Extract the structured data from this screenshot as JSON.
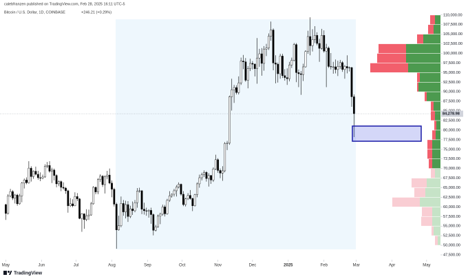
{
  "header": {
    "publisher": "calebfranzen published on TradingView.com, Feb 28, 2025 16:11 UTC-5",
    "symbol": "Bitcoin / U.S. Dollar, 1D, COINBASE",
    "change": "+246.21 (+0.29%)"
  },
  "footer": {
    "brand": "TradingView"
  },
  "chart_data": {
    "type": "candlestick",
    "up_color": "#ffffff",
    "down_color": "#000000",
    "wick_color": "#000000",
    "xlim": [
      -5,
      377
    ],
    "xticks": [
      {
        "value": 0,
        "label": "May"
      },
      {
        "value": 31,
        "label": "Jun"
      },
      {
        "value": 61,
        "label": "Jul"
      },
      {
        "value": 92,
        "label": "Aug"
      },
      {
        "value": 123,
        "label": "Sep"
      },
      {
        "value": 153,
        "label": "Oct"
      },
      {
        "value": 184,
        "label": "Nov"
      },
      {
        "value": 214,
        "label": "Dec"
      },
      {
        "value": 245,
        "label": "2025"
      },
      {
        "value": 276,
        "label": "Feb"
      },
      {
        "value": 304,
        "label": "Mar"
      },
      {
        "value": 335,
        "label": "Apr"
      },
      {
        "value": 365,
        "label": "May"
      }
    ],
    "ylim": [
      46600,
      111400
    ],
    "yticks": [
      {
        "value": 47500,
        "label": "47,500.00"
      },
      {
        "value": 50000,
        "label": "50,000.00"
      },
      {
        "value": 52500,
        "label": "52,500.00"
      },
      {
        "value": 55000,
        "label": "55,000.00"
      },
      {
        "value": 57500,
        "label": "57,500.00"
      },
      {
        "value": 60000,
        "label": "60,000.00"
      },
      {
        "value": 62500,
        "label": "62,500.00"
      },
      {
        "value": 65000,
        "label": "65,000.00"
      },
      {
        "value": 67500,
        "label": "67,500.00"
      },
      {
        "value": 70000,
        "label": "70,000.00"
      },
      {
        "value": 72500,
        "label": "72,500.00"
      },
      {
        "value": 75000,
        "label": "75,000.00"
      },
      {
        "value": 77500,
        "label": "77,500.00"
      },
      {
        "value": 80000,
        "label": "80,000.00"
      },
      {
        "value": 82500,
        "label": "82,500.00"
      },
      {
        "value": 85000,
        "label": "85,000.00"
      },
      {
        "value": 87500,
        "label": "87,500.00"
      },
      {
        "value": 90000,
        "label": "90,000.00"
      },
      {
        "value": 92500,
        "label": "92,500.00"
      },
      {
        "value": 95000,
        "label": "95,000.00"
      },
      {
        "value": 97500,
        "label": "97,500.00"
      },
      {
        "value": 100000,
        "label": "100,000.00"
      },
      {
        "value": 102500,
        "label": "102,500.00"
      },
      {
        "value": 105000,
        "label": "105,000.00"
      },
      {
        "value": 107500,
        "label": "107,500.00"
      },
      {
        "value": 110000,
        "label": "110,000.00"
      }
    ],
    "last_price": {
      "value": 84278.98,
      "label": "84,278.98"
    },
    "x": [
      0,
      2,
      4,
      6,
      8,
      10,
      12,
      14,
      16,
      18,
      20,
      22,
      24,
      26,
      28,
      30,
      32,
      34,
      36,
      38,
      40,
      42,
      44,
      46,
      48,
      50,
      52,
      54,
      56,
      58,
      60,
      62,
      64,
      66,
      68,
      70,
      72,
      74,
      76,
      78,
      80,
      82,
      84,
      86,
      88,
      90,
      92,
      94,
      96,
      98,
      100,
      102,
      104,
      106,
      108,
      110,
      112,
      114,
      116,
      118,
      120,
      122,
      124,
      126,
      128,
      130,
      132,
      134,
      136,
      138,
      140,
      142,
      144,
      146,
      148,
      150,
      152,
      154,
      156,
      158,
      160,
      162,
      164,
      166,
      168,
      170,
      172,
      174,
      176,
      178,
      180,
      182,
      184,
      186,
      188,
      190,
      192,
      194,
      196,
      198,
      200,
      202,
      204,
      206,
      208,
      210,
      212,
      214,
      216,
      218,
      220,
      222,
      224,
      226,
      228,
      230,
      232,
      234,
      236,
      238,
      240,
      242,
      244,
      246,
      248,
      250,
      252,
      254,
      256,
      258,
      260,
      262,
      264,
      266,
      268,
      270,
      272,
      274,
      276,
      278,
      280,
      282,
      284,
      286,
      288,
      290,
      292,
      294,
      296,
      298,
      300,
      302
    ],
    "candles": [
      [
        60600,
        60800,
        56600,
        58300
      ],
      [
        58300,
        63300,
        58000,
        62900
      ],
      [
        62900,
        64700,
        62500,
        64000
      ],
      [
        64000,
        64400,
        61800,
        62300
      ],
      [
        62300,
        63400,
        60900,
        63100
      ],
      [
        63100,
        63400,
        60300,
        60800
      ],
      [
        60800,
        63400,
        60600,
        62900
      ],
      [
        62900,
        66500,
        61200,
        66200
      ],
      [
        66200,
        67400,
        64800,
        67000
      ],
      [
        67000,
        67700,
        65900,
        66300
      ],
      [
        66300,
        71900,
        66100,
        70100
      ],
      [
        70100,
        70600,
        66600,
        67900
      ],
      [
        67900,
        69500,
        67300,
        69300
      ],
      [
        69300,
        70500,
        68200,
        68500
      ],
      [
        68500,
        69400,
        67100,
        67600
      ],
      [
        67600,
        69000,
        66700,
        67500
      ],
      [
        67500,
        68400,
        67200,
        67800
      ],
      [
        67800,
        71100,
        67600,
        70600
      ],
      [
        70600,
        71700,
        70100,
        70800
      ],
      [
        70800,
        71900,
        68900,
        69300
      ],
      [
        69300,
        70200,
        66200,
        69600
      ],
      [
        69600,
        70000,
        66900,
        68200
      ],
      [
        68200,
        68500,
        65100,
        66000
      ],
      [
        66000,
        66900,
        65400,
        66600
      ],
      [
        66600,
        66900,
        64100,
        65100
      ],
      [
        65100,
        66400,
        64500,
        64900
      ],
      [
        64900,
        65200,
        63400,
        64200
      ],
      [
        64200,
        64500,
        58500,
        60300
      ],
      [
        60300,
        62300,
        60000,
        60800
      ],
      [
        60800,
        62000,
        59900,
        60300
      ],
      [
        60300,
        63800,
        60200,
        62700
      ],
      [
        62700,
        63600,
        61500,
        62100
      ],
      [
        62100,
        62300,
        56800,
        57000
      ],
      [
        57000,
        58400,
        53500,
        58200
      ],
      [
        58200,
        58300,
        54300,
        56700
      ],
      [
        56700,
        59400,
        56300,
        57700
      ],
      [
        57700,
        59300,
        56600,
        57900
      ],
      [
        57900,
        61300,
        57700,
        60800
      ],
      [
        60800,
        65400,
        60600,
        65100
      ],
      [
        65100,
        65300,
        63300,
        63900
      ],
      [
        63900,
        67500,
        63300,
        67100
      ],
      [
        67100,
        68500,
        66500,
        68000
      ],
      [
        68000,
        68300,
        65200,
        65800
      ],
      [
        65800,
        68200,
        63500,
        67900
      ],
      [
        67900,
        69400,
        67200,
        68300
      ],
      [
        68300,
        70000,
        65900,
        66200
      ],
      [
        66200,
        66900,
        62500,
        64600
      ],
      [
        64600,
        65000,
        60100,
        60700
      ],
      [
        60700,
        61100,
        49100,
        54000
      ],
      [
        54000,
        57700,
        53800,
        55100
      ],
      [
        55100,
        62700,
        54700,
        60900
      ],
      [
        60900,
        61800,
        57700,
        58700
      ],
      [
        58700,
        61600,
        57000,
        60600
      ],
      [
        60600,
        61500,
        56100,
        57500
      ],
      [
        57500,
        60300,
        57100,
        59500
      ],
      [
        59500,
        61400,
        57900,
        59000
      ],
      [
        59000,
        61800,
        58600,
        61100
      ],
      [
        61100,
        64900,
        59800,
        64100
      ],
      [
        64100,
        65000,
        63700,
        64200
      ],
      [
        64200,
        64400,
        58100,
        59400
      ],
      [
        59400,
        61100,
        58000,
        59000
      ],
      [
        59000,
        59800,
        57700,
        58900
      ],
      [
        58900,
        59400,
        57200,
        59100
      ],
      [
        59100,
        59800,
        55600,
        58000
      ],
      [
        58000,
        58300,
        52600,
        53900
      ],
      [
        53900,
        55300,
        53600,
        54800
      ],
      [
        54800,
        58000,
        54600,
        57600
      ],
      [
        57600,
        58500,
        55500,
        58100
      ],
      [
        58100,
        60600,
        57700,
        60000
      ],
      [
        60000,
        60500,
        57500,
        58200
      ],
      [
        58200,
        62100,
        58000,
        61700
      ],
      [
        61700,
        64100,
        61300,
        62900
      ],
      [
        62900,
        63500,
        62400,
        63300
      ],
      [
        63300,
        64700,
        62700,
        64200
      ],
      [
        64200,
        65700,
        62700,
        65200
      ],
      [
        65200,
        66400,
        64800,
        65900
      ],
      [
        65900,
        66100,
        62900,
        63300
      ],
      [
        63300,
        64100,
        60200,
        60600
      ],
      [
        60600,
        62400,
        60100,
        62100
      ],
      [
        62100,
        63600,
        61800,
        63000
      ],
      [
        63000,
        64400,
        61900,
        62200
      ],
      [
        62200,
        62400,
        58900,
        60300
      ],
      [
        60300,
        63400,
        60100,
        63200
      ],
      [
        63200,
        66400,
        62500,
        66000
      ],
      [
        66000,
        68400,
        65000,
        67600
      ],
      [
        67600,
        68900,
        66900,
        68400
      ],
      [
        68400,
        69500,
        67800,
        69000
      ],
      [
        69000,
        69300,
        66600,
        67400
      ],
      [
        67400,
        68800,
        65300,
        68200
      ],
      [
        68200,
        68300,
        66000,
        67000
      ],
      [
        67000,
        70300,
        66500,
        69900
      ],
      [
        69900,
        73600,
        69600,
        72300
      ],
      [
        72300,
        72700,
        68900,
        69500
      ],
      [
        69500,
        70000,
        67500,
        68800
      ],
      [
        68800,
        70600,
        66800,
        69400
      ],
      [
        69400,
        76900,
        69000,
        76500
      ],
      [
        76500,
        77200,
        74800,
        76600
      ],
      [
        76600,
        89000,
        76200,
        88700
      ],
      [
        88700,
        93400,
        85100,
        90500
      ],
      [
        90500,
        91800,
        87100,
        91100
      ],
      [
        91100,
        91700,
        89300,
        89800
      ],
      [
        89800,
        94000,
        89300,
        92300
      ],
      [
        92300,
        98900,
        91800,
        98000
      ],
      [
        98000,
        99600,
        95900,
        97800
      ],
      [
        97800,
        98800,
        92600,
        93000
      ],
      [
        93000,
        96700,
        90900,
        96000
      ],
      [
        96000,
        98600,
        95400,
        97400
      ],
      [
        97400,
        98000,
        95800,
        97200
      ],
      [
        97200,
        97400,
        94000,
        96000
      ],
      [
        96000,
        104000,
        92100,
        98800
      ],
      [
        98800,
        101200,
        96500,
        99900
      ],
      [
        99900,
        101400,
        94200,
        97400
      ],
      [
        97400,
        101900,
        95500,
        101100
      ],
      [
        101100,
        102500,
        99300,
        101400
      ],
      [
        101400,
        105200,
        100900,
        104500
      ],
      [
        104500,
        108300,
        103300,
        106100
      ],
      [
        106100,
        106500,
        95600,
        97500
      ],
      [
        97500,
        99500,
        92200,
        97200
      ],
      [
        97200,
        97600,
        92400,
        94700
      ],
      [
        94700,
        99900,
        93400,
        99300
      ],
      [
        99300,
        99900,
        93600,
        94200
      ],
      [
        94200,
        95900,
        92900,
        93700
      ],
      [
        93700,
        96100,
        91800,
        93400
      ],
      [
        93400,
        97800,
        92700,
        97000
      ],
      [
        97000,
        98900,
        96200,
        98200
      ],
      [
        98200,
        102700,
        97900,
        102300
      ],
      [
        102300,
        102700,
        92500,
        95000
      ],
      [
        95000,
        95800,
        91200,
        94700
      ],
      [
        94700,
        95400,
        89200,
        94500
      ],
      [
        94500,
        97300,
        92800,
        96500
      ],
      [
        96500,
        100800,
        96300,
        100500
      ],
      [
        100500,
        105900,
        99900,
        104400
      ],
      [
        104400,
        109400,
        99500,
        102000
      ],
      [
        102000,
        106300,
        100500,
        103600
      ],
      [
        103600,
        107100,
        102700,
        104700
      ],
      [
        104700,
        105500,
        102100,
        102600
      ],
      [
        102600,
        103800,
        97800,
        101300
      ],
      [
        101300,
        106400,
        101000,
        104700
      ],
      [
        104700,
        106000,
        100200,
        100600
      ],
      [
        100600,
        102500,
        91200,
        101400
      ],
      [
        101400,
        101800,
        96200,
        96600
      ],
      [
        96600,
        100100,
        95800,
        96500
      ],
      [
        96500,
        97800,
        94700,
        96500
      ],
      [
        96500,
        98400,
        94800,
        95800
      ],
      [
        95800,
        98100,
        94100,
        96600
      ],
      [
        96600,
        98300,
        96000,
        97600
      ],
      [
        97600,
        98000,
        95200,
        95800
      ],
      [
        95800,
        97000,
        93400,
        96600
      ],
      [
        96600,
        99500,
        94800,
        96200
      ],
      [
        96200,
        96600,
        95300,
        96300
      ],
      [
        96300,
        96500,
        86100,
        88700
      ],
      [
        88700,
        89300,
        78200,
        84300
      ]
    ],
    "volume_profile": {
      "vlim": [
        0,
        100
      ],
      "up_color": "#4c9a4f",
      "down_color": "#f25f6c",
      "faded_up_color": "#c6e3c7",
      "faded_down_color": "#f9cdd3",
      "price_levels": [
        50000,
        52500,
        55000,
        57500,
        60000,
        62500,
        65000,
        67500,
        70000,
        72500,
        75000,
        77500,
        80000,
        82500,
        85000,
        87500,
        90000,
        92500,
        95000,
        97500,
        100000,
        102500,
        105000,
        107500,
        110000
      ],
      "up": [
        4,
        10,
        12,
        12,
        30,
        22,
        20,
        8,
        12,
        12,
        12,
        7,
        6,
        8,
        10,
        20,
        32,
        30,
        47,
        50,
        50,
        25,
        10,
        8
      ],
      "down": [
        4,
        3,
        16,
        15,
        40,
        16,
        22,
        6,
        5,
        7,
        7,
        5,
        3,
        6,
        4,
        3,
        2,
        4,
        55,
        42,
        40,
        9,
        8,
        7
      ],
      "faded": [
        true,
        true,
        true,
        true,
        true,
        true,
        true,
        true,
        false,
        false,
        false,
        false,
        false,
        false,
        false,
        false,
        false,
        false,
        false,
        false,
        false,
        false,
        false,
        false
      ]
    }
  }
}
